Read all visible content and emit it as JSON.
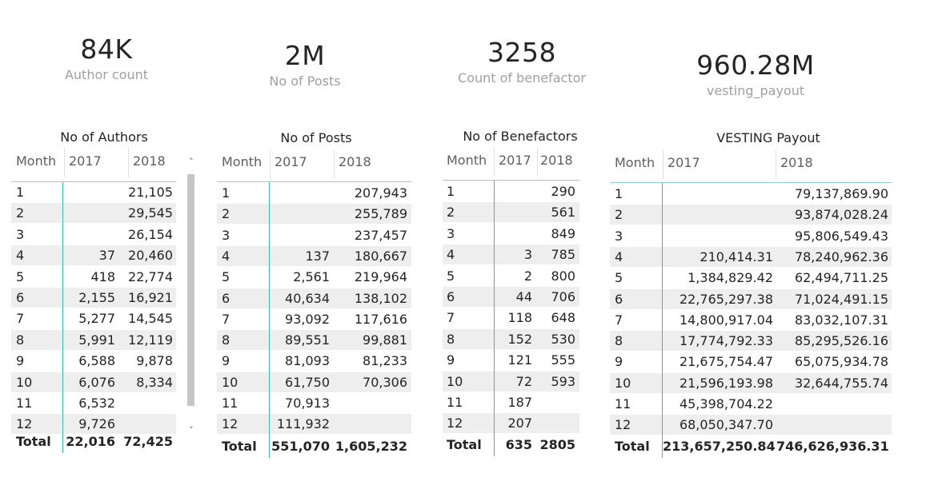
{
  "cards": [
    {
      "value": "84K",
      "label": "Author count"
    },
    {
      "value": "2M",
      "label": "No of Posts"
    },
    {
      "value": "3258",
      "label": "Count of benefactor"
    },
    {
      "value": "960.28M",
      "label": "vesting_payout"
    }
  ],
  "matrices": [
    {
      "title": "No of Authors",
      "headers": [
        "Month",
        "2017",
        "2018"
      ],
      "rows": [
        [
          "1",
          "",
          "21,105"
        ],
        [
          "2",
          "",
          "29,545"
        ],
        [
          "3",
          "",
          "26,154"
        ],
        [
          "4",
          "37",
          "20,460"
        ],
        [
          "5",
          "418",
          "22,774"
        ],
        [
          "6",
          "2,155",
          "16,921"
        ],
        [
          "7",
          "5,277",
          "14,545"
        ],
        [
          "8",
          "5,991",
          "12,119"
        ],
        [
          "9",
          "6,588",
          "9,878"
        ],
        [
          "10",
          "6,076",
          "8,334"
        ],
        [
          "11",
          "6,532",
          ""
        ],
        [
          "12",
          "9,726",
          ""
        ]
      ],
      "total": [
        "Total",
        "22,016",
        "72,425"
      ]
    },
    {
      "title": "No of Posts",
      "headers": [
        "Month",
        "2017",
        "2018"
      ],
      "rows": [
        [
          "1",
          "",
          "207,943"
        ],
        [
          "2",
          "",
          "255,789"
        ],
        [
          "3",
          "",
          "237,457"
        ],
        [
          "4",
          "137",
          "180,667"
        ],
        [
          "5",
          "2,561",
          "219,964"
        ],
        [
          "6",
          "40,634",
          "138,102"
        ],
        [
          "7",
          "93,092",
          "117,616"
        ],
        [
          "8",
          "89,551",
          "99,881"
        ],
        [
          "9",
          "81,093",
          "81,233"
        ],
        [
          "10",
          "61,750",
          "70,306"
        ],
        [
          "11",
          "70,913",
          ""
        ],
        [
          "12",
          "111,932",
          ""
        ]
      ],
      "total": [
        "Total",
        "551,070",
        "1,605,232"
      ]
    },
    {
      "title": "No of Benefactors",
      "headers": [
        "Month",
        "2017",
        "2018"
      ],
      "rows": [
        [
          "1",
          "",
          "290"
        ],
        [
          "2",
          "",
          "561"
        ],
        [
          "3",
          "",
          "849"
        ],
        [
          "4",
          "3",
          "785"
        ],
        [
          "5",
          "2",
          "800"
        ],
        [
          "6",
          "44",
          "706"
        ],
        [
          "7",
          "118",
          "648"
        ],
        [
          "8",
          "152",
          "530"
        ],
        [
          "9",
          "121",
          "555"
        ],
        [
          "10",
          "72",
          "593"
        ],
        [
          "11",
          "187",
          ""
        ],
        [
          "12",
          "207",
          ""
        ]
      ],
      "total": [
        "Total",
        "635",
        "2805"
      ]
    },
    {
      "title": "VESTING Payout",
      "headers": [
        "Month",
        "2017",
        "2018"
      ],
      "rows": [
        [
          "1",
          "",
          "79,137,869.90"
        ],
        [
          "2",
          "",
          "93,874,028.24"
        ],
        [
          "3",
          "",
          "95,806,549.43"
        ],
        [
          "4",
          "210,414.31",
          "78,240,962.36"
        ],
        [
          "5",
          "1,384,829.42",
          "62,494,711.25"
        ],
        [
          "6",
          "22,765,297.38",
          "71,024,491.15"
        ],
        [
          "7",
          "14,800,917.04",
          "83,032,107.31"
        ],
        [
          "8",
          "17,774,792.33",
          "85,295,526.16"
        ],
        [
          "9",
          "21,675,754.47",
          "65,075,934.78"
        ],
        [
          "10",
          "21,596,193.98",
          "32,644,755.74"
        ],
        [
          "11",
          "45,398,704.22",
          ""
        ],
        [
          "12",
          "68,050,347.70",
          ""
        ]
      ],
      "total": [
        "Total",
        "213,657,250.84",
        "746,626,936.31"
      ]
    }
  ],
  "scrollbar": {
    "up_icon": "chevron-up-icon",
    "down_icon": "chevron-down-icon"
  }
}
